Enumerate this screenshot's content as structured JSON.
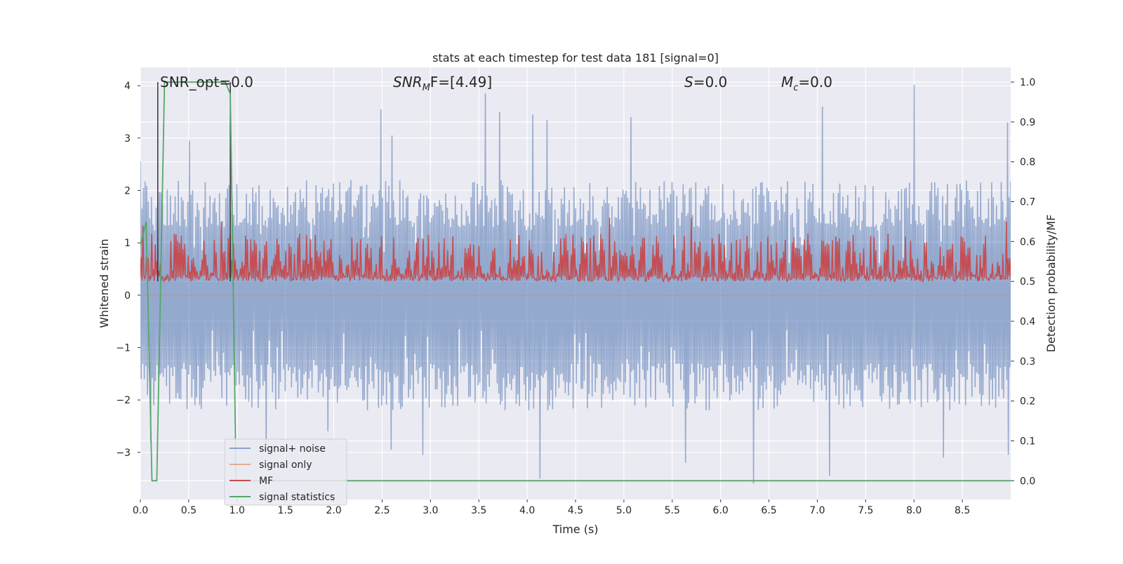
{
  "chart_data": {
    "type": "line",
    "title": "stats at each timestep for test data 181 [signal=0]",
    "xlabel": "Time (s)",
    "ylabel": "Whitened strain",
    "ylabel_right": "Detection probability/MF",
    "xlim": [
      0.0,
      9.0
    ],
    "ylim": [
      -3.9,
      4.35
    ],
    "ylim_right": [
      -0.047,
      1.037
    ],
    "x_ticks": [
      0.0,
      0.5,
      1.0,
      1.5,
      2.0,
      2.5,
      3.0,
      3.5,
      4.0,
      4.5,
      5.0,
      5.5,
      6.0,
      6.5,
      7.0,
      7.5,
      8.0,
      8.5
    ],
    "x_tick_labels": [
      "0.0",
      "0.5",
      "1.0",
      "1.5",
      "2.0",
      "2.5",
      "3.0",
      "3.5",
      "4.0",
      "4.5",
      "5.0",
      "5.5",
      "6.0",
      "6.5",
      "7.0",
      "7.5",
      "8.0",
      "8.5"
    ],
    "y_ticks": [
      -3,
      -2,
      -1,
      0,
      1,
      2,
      3,
      4
    ],
    "y_tick_labels": [
      "−3",
      "−2",
      "−1",
      "0",
      "1",
      "2",
      "3",
      "4"
    ],
    "y_right_ticks": [
      0.0,
      0.1,
      0.2,
      0.3,
      0.4,
      0.5,
      0.6,
      0.7,
      0.8,
      0.9,
      1.0
    ],
    "y_right_tick_labels": [
      "0.0",
      "0.1",
      "0.2",
      "0.3",
      "0.4",
      "0.5",
      "0.6",
      "0.7",
      "0.8",
      "0.9",
      "1.0"
    ],
    "grid": true,
    "legend_position": "lower-left",
    "annotations": {
      "snr_opt": "SNR_opt=0.0",
      "snr_mf_main": "SNR",
      "snr_mf_sub": "M",
      "snr_mf_rest": "F=[4.49]",
      "s_main": "S",
      "s_rest": "=0.0",
      "mc_main": "M",
      "mc_sub": "c",
      "mc_rest": "=0.0"
    },
    "vlines": [
      0.18,
      0.93
    ],
    "series": [
      {
        "name": "signal+ noise",
        "color": "#4c72b0",
        "axis": "left",
        "envelope": {
          "upper_typical": [
            1.3,
            2.2
          ],
          "lower_typical": [
            -2.2,
            -1.3
          ],
          "peaks_upper": [
            [
              0.0,
              2.55
            ],
            [
              0.5,
              2.95
            ],
            [
              2.48,
              3.55
            ],
            [
              2.6,
              3.05
            ],
            [
              3.57,
              3.85
            ],
            [
              3.71,
              3.5
            ],
            [
              4.06,
              3.45
            ],
            [
              4.21,
              3.35
            ],
            [
              5.08,
              3.4
            ],
            [
              7.05,
              3.6
            ],
            [
              8.0,
              4.02
            ],
            [
              8.97,
              3.3
            ]
          ],
          "peaks_lower": [
            [
              0.1,
              -2.8
            ],
            [
              1.3,
              -3.0
            ],
            [
              1.94,
              -2.6
            ],
            [
              2.6,
              -2.95
            ],
            [
              2.92,
              -3.05
            ],
            [
              4.13,
              -3.5
            ],
            [
              5.63,
              -3.2
            ],
            [
              6.34,
              -3.6
            ],
            [
              7.12,
              -3.45
            ],
            [
              8.3,
              -3.1
            ],
            [
              8.97,
              -3.05
            ]
          ]
        }
      },
      {
        "name": "signal only",
        "color": "#dd8452",
        "axis": "left",
        "values_constant": 0.0
      },
      {
        "name": "MF",
        "color": "#c44e52",
        "axis": "right",
        "range_typical": [
          0.5,
          0.62
        ],
        "peaks": [
          [
            0.03,
            0.64
          ],
          [
            0.84,
            0.65
          ],
          [
            4.85,
            0.66
          ],
          [
            5.7,
            0.66
          ],
          [
            8.95,
            0.65
          ]
        ]
      },
      {
        "name": "signal statistics",
        "color": "#55a868",
        "axis": "right",
        "x": [
          0.0,
          0.06,
          0.12,
          0.17,
          0.25,
          0.3,
          0.35,
          0.88,
          0.93,
          0.99,
          1.5,
          2.0,
          3.0,
          4.0,
          5.0,
          6.0,
          7.0,
          8.0,
          9.0
        ],
        "y": [
          0.59,
          0.65,
          0.0,
          0.0,
          1.0,
          1.0,
          1.0,
          1.0,
          0.97,
          0.0,
          0.0,
          0.0,
          0.0,
          0.0,
          0.0,
          0.0,
          0.0,
          0.0,
          0.0
        ]
      }
    ]
  }
}
